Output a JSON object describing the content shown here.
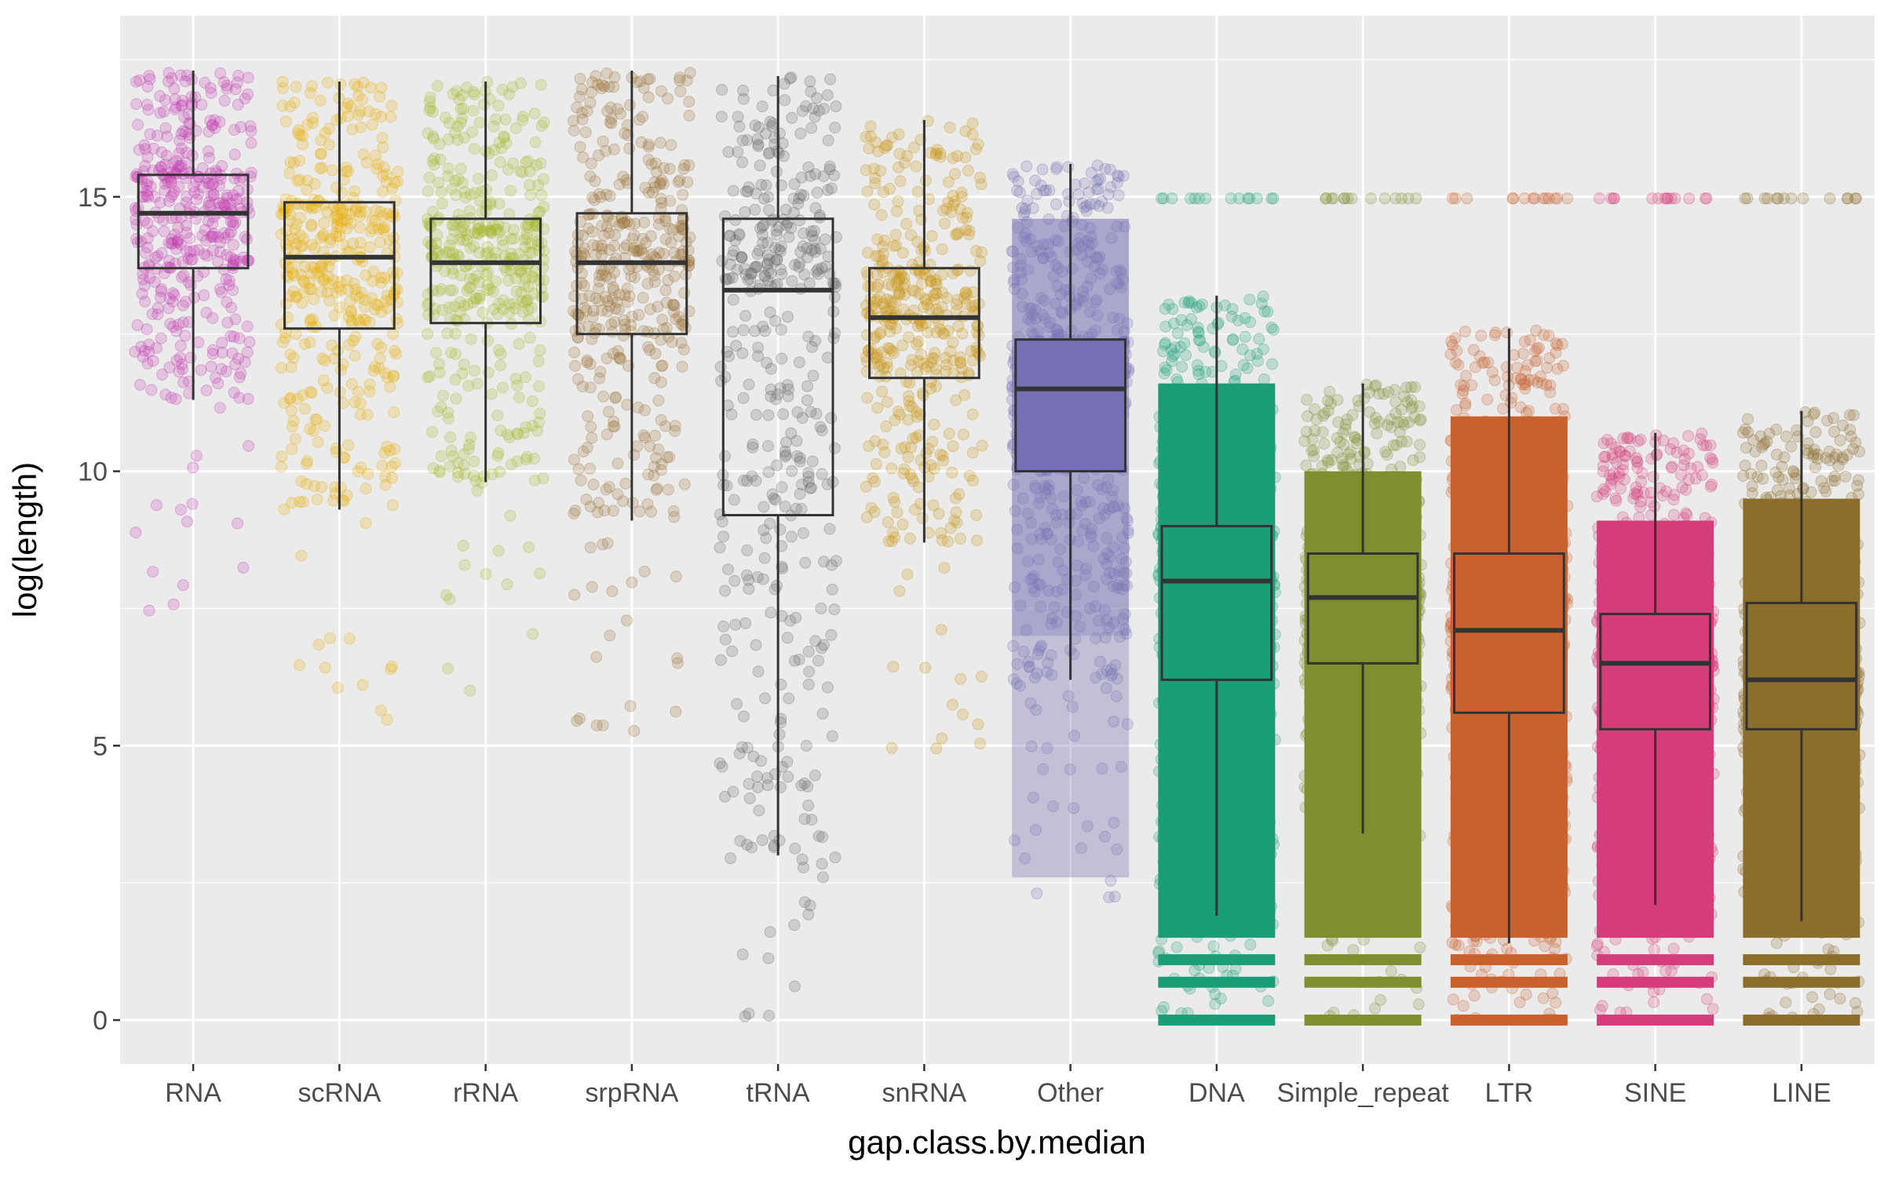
{
  "chart_data": {
    "type": "box",
    "xlabel": "gap.class.by.median",
    "ylabel": "log(length)",
    "ylim": [
      -0.8,
      18.3
    ],
    "yticks": [
      0,
      5,
      10,
      15
    ],
    "grid": true,
    "legend": "none",
    "panel_background": "#ebebeb",
    "categories": [
      "RNA",
      "scRNA",
      "rRNA",
      "srpRNA",
      "tRNA",
      "snRNA",
      "Other",
      "DNA",
      "Simple_repeat",
      "LTR",
      "SINE",
      "LINE"
    ],
    "colors": [
      "#c23bb0",
      "#e6ab02",
      "#a6b82b",
      "#9a7436",
      "#666666",
      "#c9930e",
      "#7570b3",
      "#1b9e77",
      "#7f8f30",
      "#c8612e",
      "#d43d79",
      "#8c6e2c"
    ],
    "boxes": [
      {
        "name": "RNA",
        "whisker_low": 11.3,
        "q1": 13.7,
        "median": 14.7,
        "q3": 15.4,
        "whisker_high": 17.3
      },
      {
        "name": "scRNA",
        "whisker_low": 9.3,
        "q1": 12.6,
        "median": 13.9,
        "q3": 14.9,
        "whisker_high": 17.1
      },
      {
        "name": "rRNA",
        "whisker_low": 9.8,
        "q1": 12.7,
        "median": 13.8,
        "q3": 14.6,
        "whisker_high": 17.1
      },
      {
        "name": "srpRNA",
        "whisker_low": 9.1,
        "q1": 12.5,
        "median": 13.8,
        "q3": 14.7,
        "whisker_high": 17.3
      },
      {
        "name": "tRNA",
        "whisker_low": 3.0,
        "q1": 9.2,
        "median": 13.3,
        "q3": 14.6,
        "whisker_high": 17.2
      },
      {
        "name": "snRNA",
        "whisker_low": 8.7,
        "q1": 11.7,
        "median": 12.8,
        "q3": 13.7,
        "whisker_high": 16.4
      },
      {
        "name": "Other",
        "whisker_low": 6.2,
        "q1": 10.0,
        "median": 11.5,
        "q3": 12.4,
        "whisker_high": 15.6
      },
      {
        "name": "DNA",
        "whisker_low": 1.9,
        "q1": 6.2,
        "median": 8.0,
        "q3": 9.0,
        "whisker_high": 13.2
      },
      {
        "name": "Simple_repeat",
        "whisker_low": 3.4,
        "q1": 6.5,
        "median": 7.7,
        "q3": 8.5,
        "whisker_high": 11.6
      },
      {
        "name": "LTR",
        "whisker_low": 1.4,
        "q1": 5.6,
        "median": 7.1,
        "q3": 8.5,
        "whisker_high": 12.6
      },
      {
        "name": "SINE",
        "whisker_low": 2.1,
        "q1": 5.3,
        "median": 6.5,
        "q3": 7.4,
        "whisker_high": 10.7
      },
      {
        "name": "LINE",
        "whisker_low": 1.8,
        "q1": 5.3,
        "median": 6.2,
        "q3": 7.6,
        "whisker_high": 11.1
      }
    ]
  }
}
